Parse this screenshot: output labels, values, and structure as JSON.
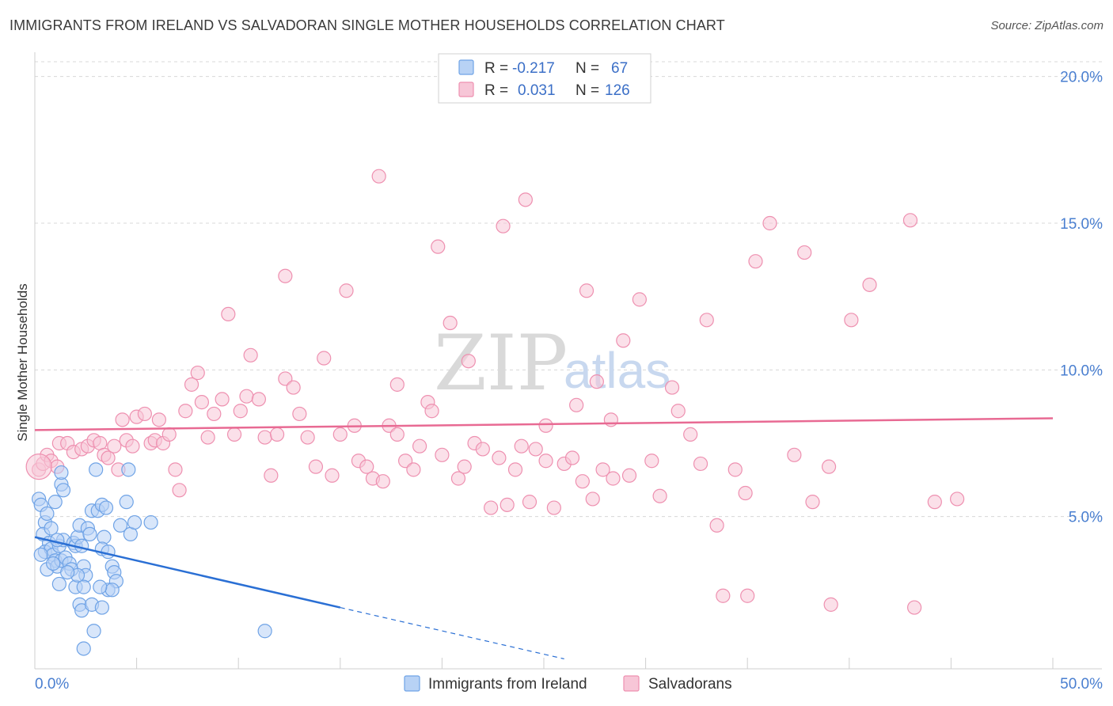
{
  "title": "IMMIGRANTS FROM IRELAND VS SALVADORAN SINGLE MOTHER HOUSEHOLDS CORRELATION CHART",
  "source": "Source: ZipAtlas.com",
  "watermark": {
    "zip": "ZIP",
    "atlas": "atlas"
  },
  "colors": {
    "blue": "#6fa3e6",
    "blue_fill": "#b8d2f5",
    "blue_line": "#2a6fd4",
    "pink": "#ee90b0",
    "pink_fill": "#f7c6d7",
    "pink_line": "#e86a93",
    "grid": "#d8d8d8",
    "tick_text": "#4a7fd0"
  },
  "legend_box": {
    "rows": [
      {
        "r_label": "R =",
        "r_value": "-0.217",
        "n_label": "N =",
        "n_value": "67",
        "color": "blue"
      },
      {
        "r_label": "R =",
        "r_value": "0.031",
        "n_label": "N =",
        "n_value": "126",
        "color": "pink"
      }
    ]
  },
  "bottom_legend": [
    {
      "label": "Immigrants from Ireland",
      "color": "blue"
    },
    {
      "label": "Salvadorans",
      "color": "pink"
    }
  ],
  "chart_data": {
    "type": "scatter",
    "title": "IMMIGRANTS FROM IRELAND VS SALVADORAN SINGLE MOTHER HOUSEHOLDS CORRELATION CHART",
    "xlabel": "",
    "ylabel": "Single Mother Households",
    "xlim": [
      0,
      50
    ],
    "ylim": [
      0,
      20
    ],
    "x_tick_labels": [
      "0.0%",
      "50.0%"
    ],
    "y_tick_labels": [
      "5.0%",
      "10.0%",
      "15.0%",
      "20.0%"
    ],
    "y_ticks": [
      5,
      10,
      15,
      20
    ],
    "grid": true,
    "series": [
      {
        "name": "Immigrants from Ireland",
        "color": "blue",
        "trend": {
          "x0": 0,
          "y0": 4.3,
          "x1": 15,
          "y1": 1.9,
          "dash_to_x": 26,
          "dash_to_y": 0.15
        },
        "points": [
          [
            0.2,
            5.6
          ],
          [
            0.3,
            5.4
          ],
          [
            0.5,
            4.8
          ],
          [
            0.6,
            5.1
          ],
          [
            0.4,
            4.4
          ],
          [
            0.7,
            4.1
          ],
          [
            0.5,
            3.8
          ],
          [
            0.8,
            3.9
          ],
          [
            0.9,
            3.7
          ],
          [
            1.0,
            3.5
          ],
          [
            0.6,
            3.2
          ],
          [
            1.1,
            3.3
          ],
          [
            1.2,
            4.0
          ],
          [
            1.3,
            3.5
          ],
          [
            1.4,
            4.2
          ],
          [
            1.5,
            3.6
          ],
          [
            1.7,
            3.4
          ],
          [
            1.8,
            3.2
          ],
          [
            1.9,
            4.1
          ],
          [
            2.0,
            4.0
          ],
          [
            2.1,
            4.3
          ],
          [
            2.2,
            4.7
          ],
          [
            2.3,
            4.0
          ],
          [
            2.4,
            3.3
          ],
          [
            2.5,
            3.0
          ],
          [
            2.6,
            4.6
          ],
          [
            2.7,
            4.4
          ],
          [
            2.8,
            5.2
          ],
          [
            1.0,
            5.5
          ],
          [
            1.3,
            6.1
          ],
          [
            1.4,
            5.9
          ],
          [
            1.3,
            6.5
          ],
          [
            3.0,
            6.6
          ],
          [
            3.1,
            5.2
          ],
          [
            3.4,
            4.3
          ],
          [
            3.3,
            3.9
          ],
          [
            3.6,
            3.8
          ],
          [
            3.8,
            3.3
          ],
          [
            3.9,
            3.1
          ],
          [
            4.0,
            2.8
          ],
          [
            4.2,
            4.7
          ],
          [
            4.5,
            5.5
          ],
          [
            4.7,
            4.4
          ],
          [
            4.9,
            4.8
          ],
          [
            5.7,
            4.8
          ],
          [
            3.3,
            5.4
          ],
          [
            3.5,
            5.3
          ],
          [
            4.6,
            6.6
          ],
          [
            1.2,
            2.7
          ],
          [
            2.0,
            2.6
          ],
          [
            2.2,
            2.0
          ],
          [
            2.3,
            1.8
          ],
          [
            2.8,
            2.0
          ],
          [
            3.3,
            1.9
          ],
          [
            2.4,
            2.6
          ],
          [
            3.6,
            2.5
          ],
          [
            3.8,
            2.5
          ],
          [
            2.9,
            1.1
          ],
          [
            2.4,
            0.5
          ],
          [
            11.3,
            1.1
          ],
          [
            0.8,
            4.6
          ],
          [
            1.1,
            4.2
          ],
          [
            2.1,
            3.0
          ],
          [
            0.3,
            3.7
          ],
          [
            0.9,
            3.4
          ],
          [
            1.6,
            3.1
          ],
          [
            3.2,
            2.6
          ]
        ]
      },
      {
        "name": "Salvadorans",
        "color": "pink",
        "trend": {
          "x0": 0,
          "y0": 7.95,
          "x1": 50,
          "y1": 8.35
        },
        "points": [
          [
            0.2,
            6.6
          ],
          [
            0.4,
            6.8
          ],
          [
            0.6,
            7.1
          ],
          [
            0.8,
            6.9
          ],
          [
            1.1,
            6.7
          ],
          [
            1.2,
            7.5
          ],
          [
            1.6,
            7.5
          ],
          [
            1.9,
            7.2
          ],
          [
            2.3,
            7.3
          ],
          [
            2.6,
            7.4
          ],
          [
            2.9,
            7.6
          ],
          [
            3.2,
            7.5
          ],
          [
            3.4,
            7.1
          ],
          [
            3.6,
            7.0
          ],
          [
            3.9,
            7.4
          ],
          [
            4.1,
            6.6
          ],
          [
            4.3,
            8.3
          ],
          [
            4.5,
            7.6
          ],
          [
            4.8,
            7.4
          ],
          [
            5.0,
            8.4
          ],
          [
            5.4,
            8.5
          ],
          [
            5.7,
            7.5
          ],
          [
            5.9,
            7.6
          ],
          [
            6.1,
            8.3
          ],
          [
            6.3,
            7.5
          ],
          [
            6.6,
            7.8
          ],
          [
            6.9,
            6.6
          ],
          [
            7.1,
            5.9
          ],
          [
            7.4,
            8.6
          ],
          [
            7.7,
            9.5
          ],
          [
            8.0,
            9.9
          ],
          [
            8.2,
            8.9
          ],
          [
            8.5,
            7.7
          ],
          [
            8.8,
            8.5
          ],
          [
            9.2,
            9.0
          ],
          [
            9.5,
            11.9
          ],
          [
            9.8,
            7.8
          ],
          [
            10.1,
            8.6
          ],
          [
            10.4,
            9.1
          ],
          [
            10.6,
            10.5
          ],
          [
            11.0,
            9.0
          ],
          [
            11.3,
            7.7
          ],
          [
            11.6,
            6.4
          ],
          [
            11.9,
            7.8
          ],
          [
            12.3,
            9.7
          ],
          [
            12.7,
            9.4
          ],
          [
            13.0,
            8.5
          ],
          [
            13.4,
            7.7
          ],
          [
            13.8,
            6.7
          ],
          [
            14.2,
            10.4
          ],
          [
            14.6,
            6.4
          ],
          [
            15.0,
            7.8
          ],
          [
            15.3,
            12.7
          ],
          [
            15.7,
            8.1
          ],
          [
            15.9,
            6.9
          ],
          [
            16.3,
            6.7
          ],
          [
            16.6,
            6.3
          ],
          [
            17.1,
            6.2
          ],
          [
            17.4,
            8.1
          ],
          [
            17.8,
            7.8
          ],
          [
            18.2,
            6.9
          ],
          [
            18.6,
            6.6
          ],
          [
            18.9,
            7.4
          ],
          [
            19.3,
            8.9
          ],
          [
            19.5,
            8.6
          ],
          [
            19.8,
            14.2
          ],
          [
            20.0,
            7.1
          ],
          [
            20.4,
            11.6
          ],
          [
            20.8,
            6.3
          ],
          [
            21.1,
            6.7
          ],
          [
            21.6,
            7.5
          ],
          [
            22.0,
            7.3
          ],
          [
            22.4,
            5.3
          ],
          [
            22.8,
            7.0
          ],
          [
            23.2,
            5.4
          ],
          [
            23.6,
            6.6
          ],
          [
            23.9,
            7.4
          ],
          [
            24.3,
            5.5
          ],
          [
            24.6,
            7.3
          ],
          [
            25.1,
            6.9
          ],
          [
            25.5,
            5.3
          ],
          [
            26.0,
            6.8
          ],
          [
            26.4,
            7.0
          ],
          [
            26.9,
            6.2
          ],
          [
            27.4,
            5.6
          ],
          [
            27.9,
            6.6
          ],
          [
            28.4,
            6.3
          ],
          [
            28.9,
            11.0
          ],
          [
            29.2,
            6.4
          ],
          [
            29.7,
            12.4
          ],
          [
            30.3,
            6.9
          ],
          [
            30.7,
            5.7
          ],
          [
            31.3,
            9.4
          ],
          [
            31.6,
            8.6
          ],
          [
            32.2,
            7.8
          ],
          [
            32.7,
            6.8
          ],
          [
            33.0,
            11.7
          ],
          [
            33.5,
            4.7
          ],
          [
            34.4,
            6.6
          ],
          [
            34.9,
            5.8
          ],
          [
            35.4,
            13.7
          ],
          [
            36.1,
            15.0
          ],
          [
            37.3,
            7.1
          ],
          [
            37.8,
            14.0
          ],
          [
            38.2,
            5.5
          ],
          [
            39.0,
            6.7
          ],
          [
            40.1,
            11.7
          ],
          [
            41.0,
            12.9
          ],
          [
            43.0,
            15.1
          ],
          [
            44.2,
            5.5
          ],
          [
            45.3,
            5.6
          ],
          [
            12.3,
            13.2
          ],
          [
            16.9,
            16.6
          ],
          [
            17.8,
            9.5
          ],
          [
            21.3,
            10.3
          ],
          [
            23.0,
            14.9
          ],
          [
            24.1,
            15.8
          ],
          [
            25.1,
            8.1
          ],
          [
            26.6,
            8.8
          ],
          [
            27.1,
            12.7
          ],
          [
            27.6,
            9.6
          ],
          [
            28.3,
            8.3
          ],
          [
            33.8,
            2.3
          ],
          [
            35.0,
            2.3
          ],
          [
            39.1,
            2.0
          ],
          [
            43.2,
            1.9
          ]
        ]
      }
    ]
  }
}
